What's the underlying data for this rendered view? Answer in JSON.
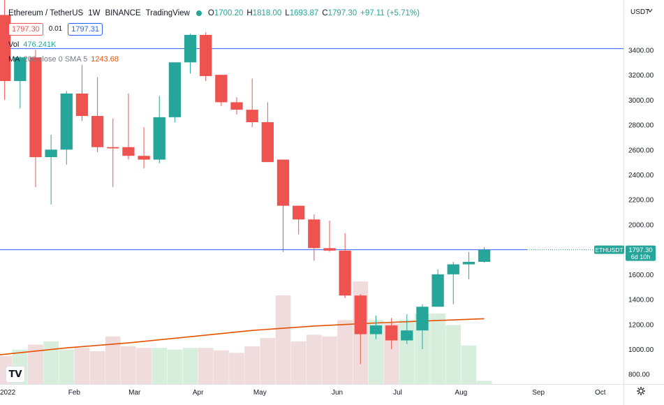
{
  "legend": {
    "symbol": "Ethereum / TetherUS",
    "interval": "1W",
    "exchange": "BINANCE",
    "source": "TradingView",
    "open_label": "O",
    "open": "1700.20",
    "high_label": "H",
    "high": "1818.00",
    "low_label": "L",
    "low": "1693.87",
    "close_label": "C",
    "close": "1797.30",
    "change": "+97.11 (+5.71%)",
    "bid": "1797.30",
    "spread": "0.01",
    "ask": "1797.31",
    "vol_label": "Vol",
    "vol_value": "476.241K",
    "ma_label": "MA",
    "ma_params": "200 close 0 SMA 5",
    "ma_value": "1243.68"
  },
  "logo": "TV",
  "colors": {
    "up": "#26a69a",
    "down": "#ef5350",
    "vol_up": "#d7eedd",
    "vol_down": "#f0dcdc",
    "ma": "#e65100",
    "hline": "#2962ff",
    "grid": "#f0f3fa",
    "axis_text": "#131722"
  },
  "chart_data": {
    "type": "candlestick",
    "currency": "USDT",
    "price_axis_ticks": [
      "800.00",
      "1000.00",
      "1200.00",
      "1400.00",
      "1600.00",
      "1800.00",
      "2000.00",
      "2200.00",
      "2400.00",
      "2600.00",
      "2800.00",
      "3000.00",
      "3200.00",
      "3400.00"
    ],
    "ylim": [
      720,
      3800
    ],
    "time_axis_labels": [
      "2022",
      "Feb",
      "Mar",
      "Apr",
      "May",
      "Jun",
      "Jul",
      "Aug",
      "Sep",
      "Oct"
    ],
    "time_axis_week_index": [
      -0.3,
      4.5,
      8.4,
      12.5,
      16.5,
      21.5,
      25.4,
      29.5,
      34.5,
      38.5
    ],
    "x_range": [
      -0.3,
      40
    ],
    "candles": [
      {
        "o": 3680,
        "h": 3850,
        "l": 3000,
        "c": 3150
      },
      {
        "o": 3150,
        "h": 3350,
        "l": 2930,
        "c": 3340
      },
      {
        "o": 3340,
        "h": 3400,
        "l": 2300,
        "c": 2540
      },
      {
        "o": 2540,
        "h": 2720,
        "l": 2160,
        "c": 2600
      },
      {
        "o": 2600,
        "h": 3070,
        "l": 2480,
        "c": 3050
      },
      {
        "o": 3050,
        "h": 3280,
        "l": 2830,
        "c": 2870
      },
      {
        "o": 2870,
        "h": 3180,
        "l": 2580,
        "c": 2620
      },
      {
        "o": 2620,
        "h": 2850,
        "l": 2300,
        "c": 2610
      },
      {
        "o": 2620,
        "h": 3050,
        "l": 2520,
        "c": 2550
      },
      {
        "o": 2550,
        "h": 2780,
        "l": 2450,
        "c": 2520
      },
      {
        "o": 2520,
        "h": 3030,
        "l": 2490,
        "c": 2860
      },
      {
        "o": 2860,
        "h": 3300,
        "l": 2820,
        "c": 3300
      },
      {
        "o": 3300,
        "h": 3530,
        "l": 3210,
        "c": 3520
      },
      {
        "o": 3520,
        "h": 3540,
        "l": 3150,
        "c": 3190
      },
      {
        "o": 3200,
        "h": 3200,
        "l": 2950,
        "c": 2980
      },
      {
        "o": 2980,
        "h": 3020,
        "l": 2880,
        "c": 2920
      },
      {
        "o": 2920,
        "h": 3170,
        "l": 2780,
        "c": 2820
      },
      {
        "o": 2820,
        "h": 2980,
        "l": 2500,
        "c": 2500
      },
      {
        "o": 2520,
        "h": 2520,
        "l": 1780,
        "c": 2150
      },
      {
        "o": 2150,
        "h": 2150,
        "l": 1920,
        "c": 2040
      },
      {
        "o": 2040,
        "h": 2080,
        "l": 1710,
        "c": 1810
      },
      {
        "o": 1810,
        "h": 2030,
        "l": 1780,
        "c": 1790
      },
      {
        "o": 1790,
        "h": 1930,
        "l": 1410,
        "c": 1430
      },
      {
        "o": 1430,
        "h": 1440,
        "l": 880,
        "c": 1120
      },
      {
        "o": 1120,
        "h": 1270,
        "l": 1080,
        "c": 1190
      },
      {
        "o": 1190,
        "h": 1250,
        "l": 1000,
        "c": 1070
      },
      {
        "o": 1070,
        "h": 1280,
        "l": 1040,
        "c": 1150
      },
      {
        "o": 1150,
        "h": 1360,
        "l": 1000,
        "c": 1340
      },
      {
        "o": 1340,
        "h": 1640,
        "l": 1340,
        "c": 1600
      },
      {
        "o": 1600,
        "h": 1700,
        "l": 1360,
        "c": 1680
      },
      {
        "o": 1680,
        "h": 1780,
        "l": 1560,
        "c": 1700
      },
      {
        "o": 1700.2,
        "h": 1818,
        "l": 1693.87,
        "c": 1797.3
      }
    ],
    "volume_relative": [
      0.34,
      0.42,
      0.48,
      0.52,
      0.42,
      0.44,
      0.4,
      0.58,
      0.46,
      0.44,
      0.44,
      0.42,
      0.44,
      0.44,
      0.41,
      0.38,
      0.46,
      0.56,
      1.08,
      0.52,
      0.6,
      0.58,
      0.78,
      1.25,
      0.78,
      0.74,
      0.78,
      0.86,
      0.86,
      0.72,
      0.47,
      0.04
    ],
    "ma_line": {
      "name": "MA 200 close 0 SMA 5",
      "points": [
        [
          -0.3,
          955
        ],
        [
          4,
          1010
        ],
        [
          8,
          1050
        ],
        [
          12,
          1100
        ],
        [
          16,
          1150
        ],
        [
          20,
          1185
        ],
        [
          24,
          1210
        ],
        [
          28,
          1230
        ],
        [
          31,
          1243.68
        ]
      ]
    },
    "hlines": [
      {
        "y": 3410,
        "color": "#2962ff"
      },
      {
        "y": 1797.3,
        "color": "#2962ff"
      }
    ],
    "last_price": {
      "label": "ETHUSDT",
      "price": "1797.30",
      "countdown": "6d 10h"
    },
    "grid": false,
    "legend_position": "top-left"
  }
}
